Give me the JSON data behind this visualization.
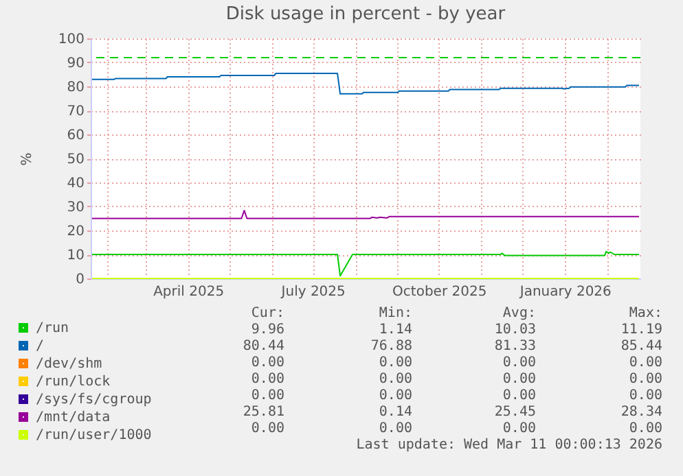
{
  "chart_data": {
    "type": "line",
    "title": "Disk usage in percent - by year",
    "ylabel": "%",
    "xlim": [
      "2025-01-20",
      "2026-02-25"
    ],
    "xticks": [
      {
        "value": "2025-02-01",
        "label": null
      },
      {
        "value": "2025-03-01",
        "label": null
      },
      {
        "value": "2025-04-01",
        "label": "April 2025"
      },
      {
        "value": "2025-05-01",
        "label": null
      },
      {
        "value": "2025-06-01",
        "label": null
      },
      {
        "value": "2025-07-01",
        "label": "July 2025"
      },
      {
        "value": "2025-08-01",
        "label": null
      },
      {
        "value": "2025-09-01",
        "label": null
      },
      {
        "value": "2025-10-01",
        "label": "October 2025"
      },
      {
        "value": "2025-11-01",
        "label": null
      },
      {
        "value": "2025-12-01",
        "label": null
      },
      {
        "value": "2026-01-01",
        "label": "January 2026"
      },
      {
        "value": "2026-02-01",
        "label": null
      }
    ],
    "ylim": [
      0,
      100
    ],
    "yticks": [
      0,
      10,
      20,
      30,
      40,
      50,
      60,
      70,
      80,
      90,
      100
    ],
    "grid": true,
    "legend": "bottom",
    "line_style": "solid",
    "ref_lines": [
      {
        "axis": "y",
        "value": 92,
        "color": "#00cc00",
        "line_style": "dashed"
      }
    ],
    "series": [
      {
        "name": "/run",
        "color": "#00cc00",
        "x": [
          "2025-01-21",
          "2025-07-19",
          "2025-07-21",
          "2025-07-30",
          "2025-11-15",
          "2025-11-16",
          "2025-11-18",
          "2026-01-30",
          "2026-01-31",
          "2026-02-02",
          "2026-02-03",
          "2026-02-06",
          "2026-02-24"
        ],
        "values": [
          10.0,
          10.0,
          1.1,
          10.0,
          10.0,
          10.5,
          9.6,
          9.6,
          11.2,
          10.6,
          11.0,
          10.0,
          10.0
        ]
      },
      {
        "name": "/",
        "color": "#0066b3",
        "x": [
          "2025-01-21",
          "2025-02-06",
          "2025-02-07",
          "2025-03-16",
          "2025-03-17",
          "2025-04-24",
          "2025-04-25",
          "2025-06-03",
          "2025-06-04",
          "2025-07-19",
          "2025-07-21",
          "2025-08-06",
          "2025-08-07",
          "2025-09-01",
          "2025-09-02",
          "2025-10-08",
          "2025-10-09",
          "2025-11-14",
          "2025-11-15",
          "2025-12-30",
          "2025-12-31",
          "2026-01-04",
          "2026-01-05",
          "2026-02-14",
          "2026-02-15",
          "2026-02-24"
        ],
        "values": [
          82.9,
          82.9,
          83.3,
          83.3,
          84.0,
          84.0,
          84.6,
          84.6,
          85.4,
          85.4,
          76.9,
          76.9,
          77.5,
          77.5,
          78.1,
          78.1,
          78.7,
          78.7,
          79.2,
          79.2,
          79.0,
          79.2,
          79.8,
          79.8,
          80.4,
          80.4
        ]
      },
      {
        "name": "/dev/shm",
        "color": "#ff8000"
      },
      {
        "name": "/run/lock",
        "color": "#ffcc00"
      },
      {
        "name": "/sys/fs/cgroup",
        "color": "#330099"
      },
      {
        "name": "/mnt/data",
        "color": "#990099",
        "x": [
          "2025-01-21",
          "2025-05-10",
          "2025-05-12",
          "2025-05-14",
          "2025-08-12",
          "2025-08-13",
          "2025-08-17",
          "2025-08-19",
          "2025-08-24",
          "2025-08-26",
          "2026-02-24"
        ],
        "values": [
          25.0,
          25.0,
          28.3,
          25.0,
          25.0,
          25.5,
          25.2,
          25.5,
          25.2,
          25.8,
          25.8
        ]
      },
      {
        "name": "/run/user/1000",
        "color": "#ccff00",
        "x": [
          "2025-01-21",
          "2026-02-24"
        ],
        "values": [
          0,
          0
        ]
      }
    ],
    "annotations": [
      "Cur:",
      "Min:",
      "Avg:",
      "Max:",
      "9.96",
      "1.14",
      "10.03",
      "11.19",
      "80.44",
      "76.88",
      "81.33",
      "85.44",
      "0.00",
      "0.00",
      "0.00",
      "0.00",
      "0.00",
      "0.00",
      "0.00",
      "0.00",
      "0.00",
      "0.00",
      "0.00",
      "0.00",
      "25.81",
      "0.14",
      "25.45",
      "28.34",
      "0.00",
      "0.00",
      "0.00",
      "0.00",
      "Last update: Wed Mar 11 00:00:13 2026"
    ]
  }
}
